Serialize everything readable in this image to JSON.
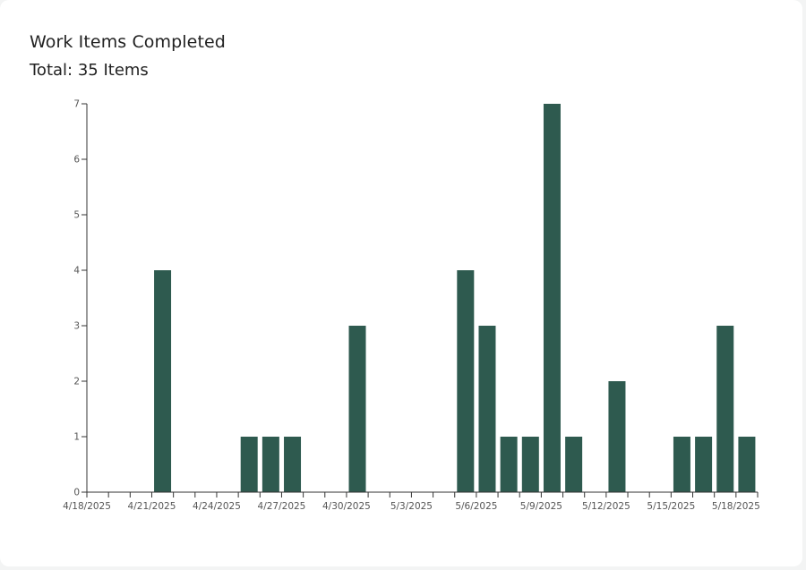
{
  "title": "Work Items Completed",
  "subtitle": "Total: 35 Items",
  "colors": {
    "bar": "#2e5a4f",
    "axis": "#333333",
    "tick_text": "#555555"
  },
  "chart_data": {
    "type": "bar",
    "title": "Work Items Completed",
    "subtitle": "Total: 35 Items",
    "xlabel": "",
    "ylabel": "",
    "ylim": [
      0,
      7
    ],
    "yticks": [
      0,
      1,
      2,
      3,
      4,
      5,
      6,
      7
    ],
    "grid": false,
    "legend": "none",
    "categories": [
      "4/18/2025",
      "4/19/2025",
      "4/20/2025",
      "4/21/2025",
      "4/22/2025",
      "4/23/2025",
      "4/24/2025",
      "4/25/2025",
      "4/26/2025",
      "4/27/2025",
      "4/28/2025",
      "4/29/2025",
      "4/30/2025",
      "5/1/2025",
      "5/2/2025",
      "5/3/2025",
      "5/4/2025",
      "5/5/2025",
      "5/6/2025",
      "5/7/2025",
      "5/8/2025",
      "5/9/2025",
      "5/10/2025",
      "5/11/2025",
      "5/12/2025",
      "5/13/2025",
      "5/14/2025",
      "5/15/2025",
      "5/16/2025",
      "5/17/2025",
      "5/18/2025"
    ],
    "values": [
      0,
      0,
      0,
      4,
      0,
      0,
      0,
      1,
      1,
      1,
      0,
      0,
      3,
      0,
      0,
      0,
      0,
      4,
      3,
      1,
      1,
      7,
      1,
      0,
      2,
      0,
      0,
      1,
      1,
      3,
      1
    ],
    "xtick_labels": [
      "4/18/2025",
      "4/21/2025",
      "4/24/2025",
      "4/27/2025",
      "4/30/2025",
      "5/3/2025",
      "5/6/2025",
      "5/9/2025",
      "5/12/2025",
      "5/15/2025",
      "5/18/2025"
    ]
  }
}
